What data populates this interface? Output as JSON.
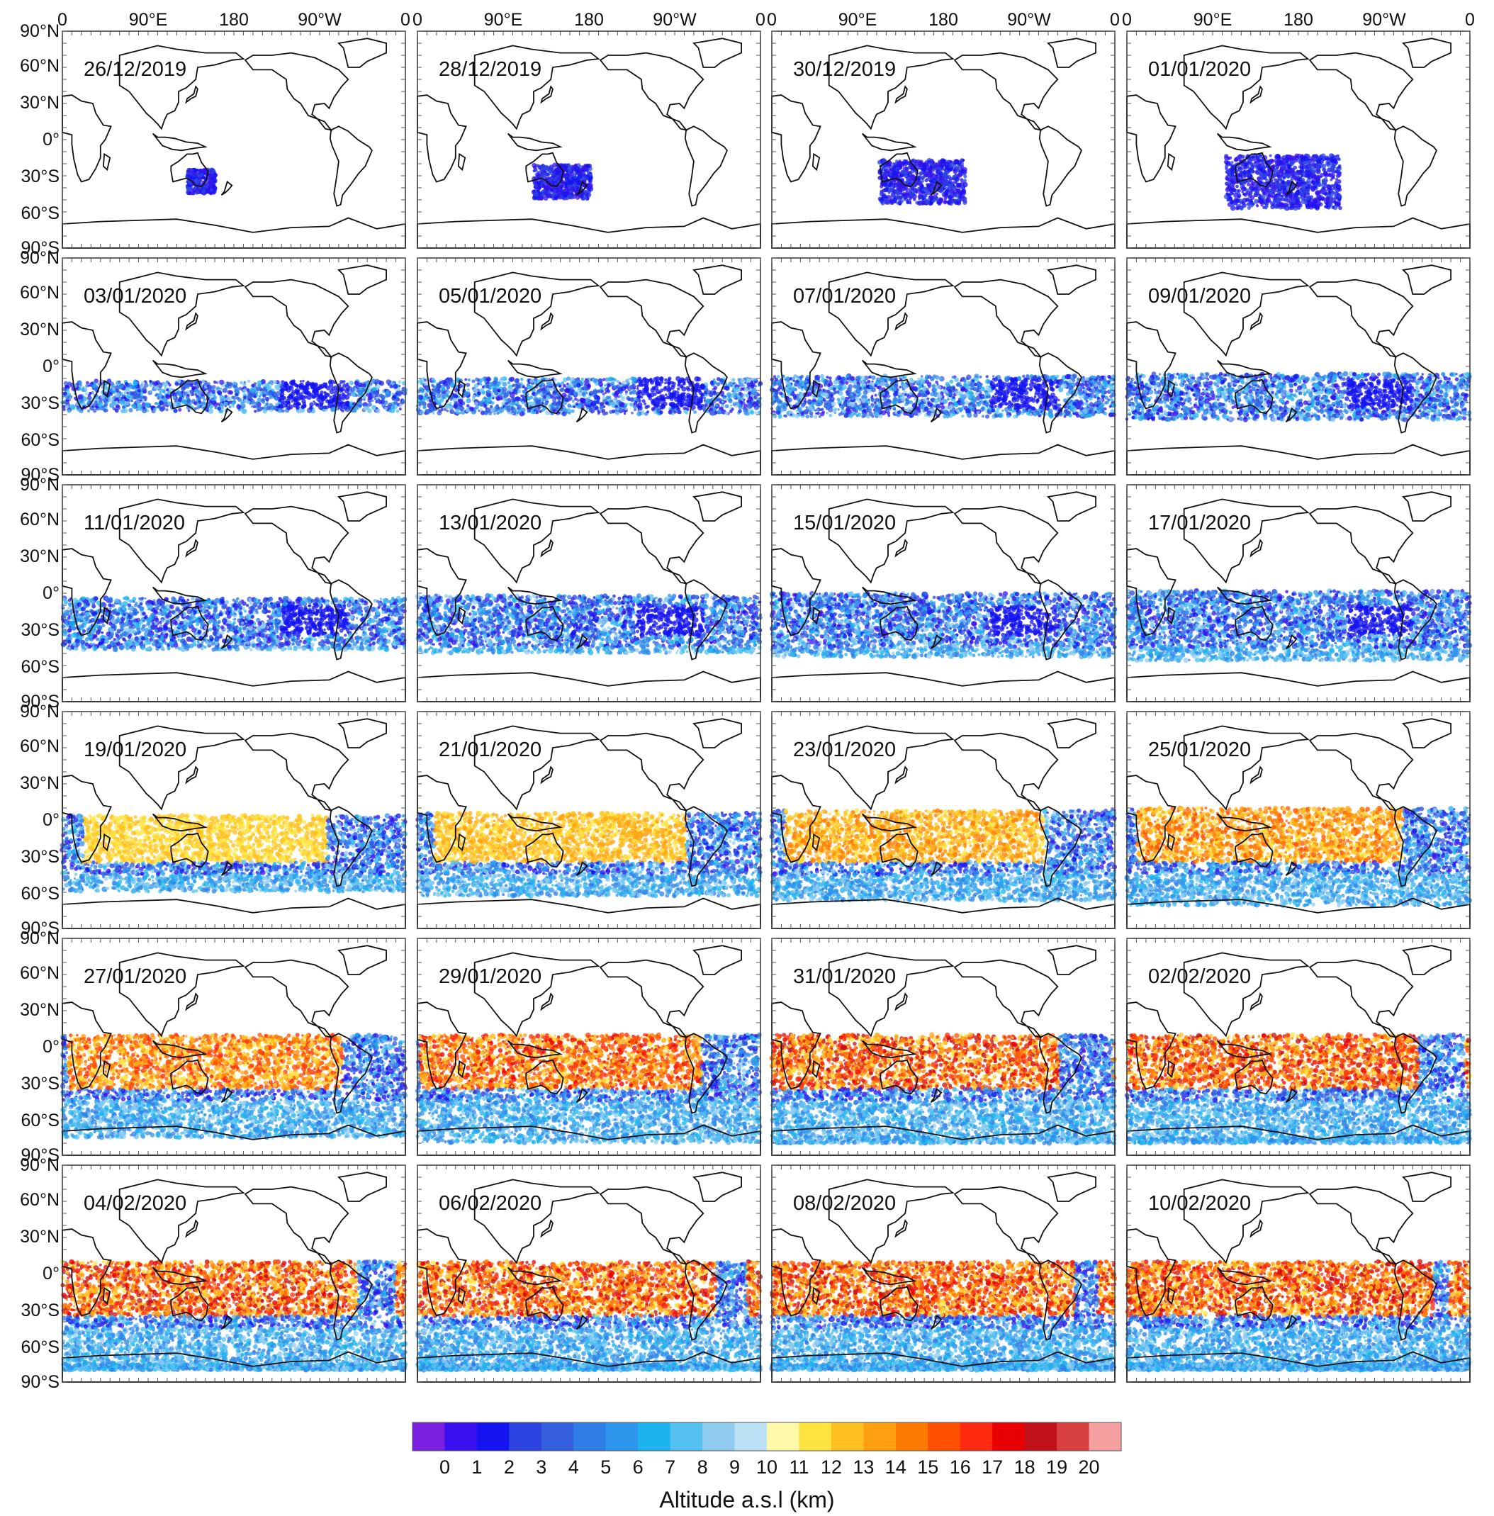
{
  "longitude_ticks": [
    "0",
    "90°E",
    "180",
    "90°W",
    "0"
  ],
  "latitude_ticks": [
    "90°N",
    "60°N",
    "30°N",
    "0°",
    "30°S",
    "60°S",
    "90°S"
  ],
  "panels": [
    {
      "date": "26/12/2019",
      "stage": 0
    },
    {
      "date": "28/12/2019",
      "stage": 1
    },
    {
      "date": "30/12/2019",
      "stage": 2
    },
    {
      "date": "01/01/2020",
      "stage": 3
    },
    {
      "date": "03/01/2020",
      "stage": 4
    },
    {
      "date": "05/01/2020",
      "stage": 5
    },
    {
      "date": "07/01/2020",
      "stage": 6
    },
    {
      "date": "09/01/2020",
      "stage": 7
    },
    {
      "date": "11/01/2020",
      "stage": 8
    },
    {
      "date": "13/01/2020",
      "stage": 9
    },
    {
      "date": "15/01/2020",
      "stage": 10
    },
    {
      "date": "17/01/2020",
      "stage": 11
    },
    {
      "date": "19/01/2020",
      "stage": 12
    },
    {
      "date": "21/01/2020",
      "stage": 13
    },
    {
      "date": "23/01/2020",
      "stage": 14
    },
    {
      "date": "25/01/2020",
      "stage": 15
    },
    {
      "date": "27/01/2020",
      "stage": 16
    },
    {
      "date": "29/01/2020",
      "stage": 17
    },
    {
      "date": "31/01/2020",
      "stage": 18
    },
    {
      "date": "02/02/2020",
      "stage": 19
    },
    {
      "date": "04/02/2020",
      "stage": 20
    },
    {
      "date": "06/02/2020",
      "stage": 21
    },
    {
      "date": "08/02/2020",
      "stage": 22
    },
    {
      "date": "10/02/2020",
      "stage": 23
    }
  ],
  "colorbar": {
    "title": "Altitude a.s.l (km)",
    "tick_labels": [
      "0",
      "1",
      "2",
      "3",
      "4",
      "5",
      "6",
      "7",
      "8",
      "9",
      "10",
      "11",
      "12",
      "13",
      "14",
      "15",
      "16",
      "17",
      "18",
      "19",
      "20"
    ],
    "colors": [
      "#7a1fe0",
      "#3a10ee",
      "#1414f0",
      "#2c44e0",
      "#3460e0",
      "#2f7ee8",
      "#2f96ee",
      "#1bb4ee",
      "#54c0f0",
      "#90ccf0",
      "#bce0f4",
      "#fff8a8",
      "#ffe440",
      "#ffc020",
      "#ffa010",
      "#ff7a00",
      "#ff5000",
      "#ff2a10",
      "#e80000",
      "#c0101a",
      "#d84040",
      "#f5a0a0"
    ]
  }
}
